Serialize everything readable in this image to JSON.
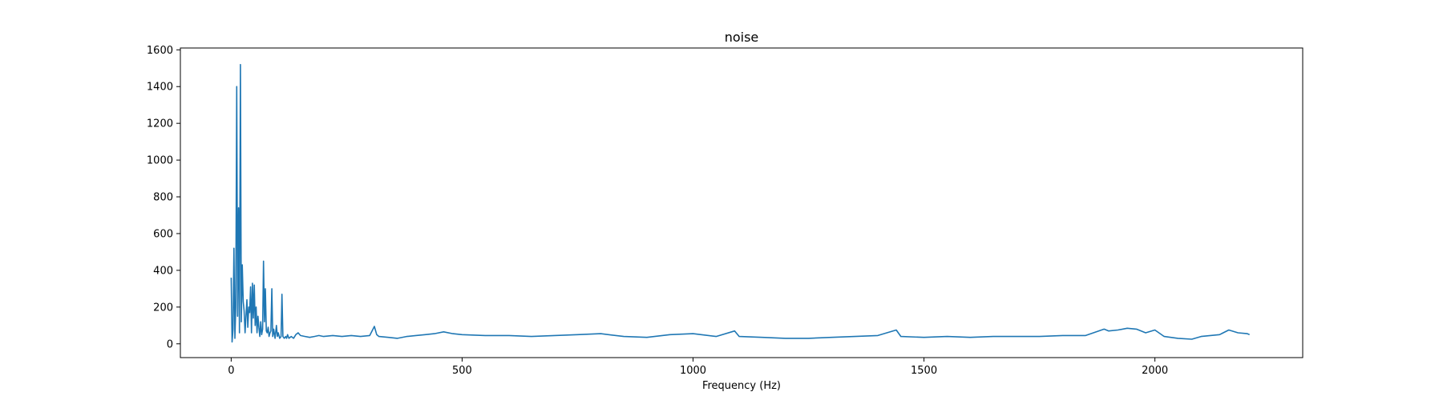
{
  "chart_data": {
    "type": "line",
    "title": "noise",
    "xlabel": "Frequency (Hz)",
    "ylabel": "",
    "xlim": [
      -110,
      2320
    ],
    "ylim": [
      -75,
      1610
    ],
    "xticks": [
      0,
      500,
      1000,
      1500,
      2000
    ],
    "yticks": [
      0,
      200,
      400,
      600,
      800,
      1000,
      1200,
      1400,
      1600
    ],
    "grid": false,
    "legend": "none",
    "series": [
      {
        "color": "#1f77b4",
        "x": [
          0,
          2,
          4,
          6,
          8,
          10,
          12,
          14,
          16,
          18,
          20,
          22,
          24,
          26,
          28,
          30,
          32,
          34,
          36,
          38,
          40,
          42,
          44,
          46,
          48,
          50,
          52,
          54,
          56,
          58,
          60,
          62,
          64,
          66,
          68,
          70,
          72,
          74,
          76,
          78,
          80,
          82,
          84,
          86,
          88,
          90,
          92,
          95,
          98,
          100,
          102,
          105,
          108,
          110,
          112,
          115,
          118,
          120,
          122,
          125,
          130,
          135,
          140,
          145,
          150,
          160,
          170,
          180,
          190,
          200,
          220,
          240,
          260,
          280,
          300,
          310,
          315,
          320,
          340,
          360,
          380,
          400,
          420,
          440,
          460,
          480,
          500,
          550,
          600,
          650,
          700,
          750,
          800,
          850,
          900,
          950,
          1000,
          1050,
          1090,
          1100,
          1150,
          1200,
          1250,
          1300,
          1350,
          1400,
          1440,
          1450,
          1500,
          1550,
          1600,
          1650,
          1700,
          1750,
          1800,
          1850,
          1890,
          1900,
          1920,
          1940,
          1960,
          1980,
          2000,
          2020,
          2050,
          2080,
          2100,
          2120,
          2140,
          2160,
          2180,
          2200,
          2205
        ],
        "y": [
          360,
          10,
          80,
          520,
          30,
          200,
          1400,
          150,
          740,
          60,
          1520,
          120,
          430,
          230,
          180,
          60,
          150,
          240,
          90,
          200,
          170,
          310,
          60,
          330,
          140,
          320,
          100,
          200,
          60,
          150,
          90,
          40,
          120,
          50,
          80,
          450,
          120,
          300,
          70,
          60,
          90,
          40,
          60,
          70,
          300,
          40,
          80,
          30,
          100,
          40,
          60,
          30,
          40,
          270,
          40,
          30,
          40,
          30,
          50,
          30,
          40,
          30,
          50,
          60,
          45,
          40,
          35,
          40,
          45,
          40,
          45,
          40,
          45,
          40,
          45,
          95,
          50,
          40,
          35,
          30,
          40,
          45,
          50,
          55,
          65,
          55,
          50,
          45,
          45,
          40,
          45,
          50,
          55,
          40,
          35,
          50,
          55,
          40,
          70,
          40,
          35,
          30,
          30,
          35,
          40,
          45,
          75,
          40,
          35,
          40,
          35,
          40,
          40,
          40,
          45,
          45,
          80,
          70,
          75,
          85,
          80,
          60,
          75,
          40,
          30,
          25,
          40,
          45,
          50,
          75,
          60,
          55,
          50
        ]
      }
    ]
  }
}
